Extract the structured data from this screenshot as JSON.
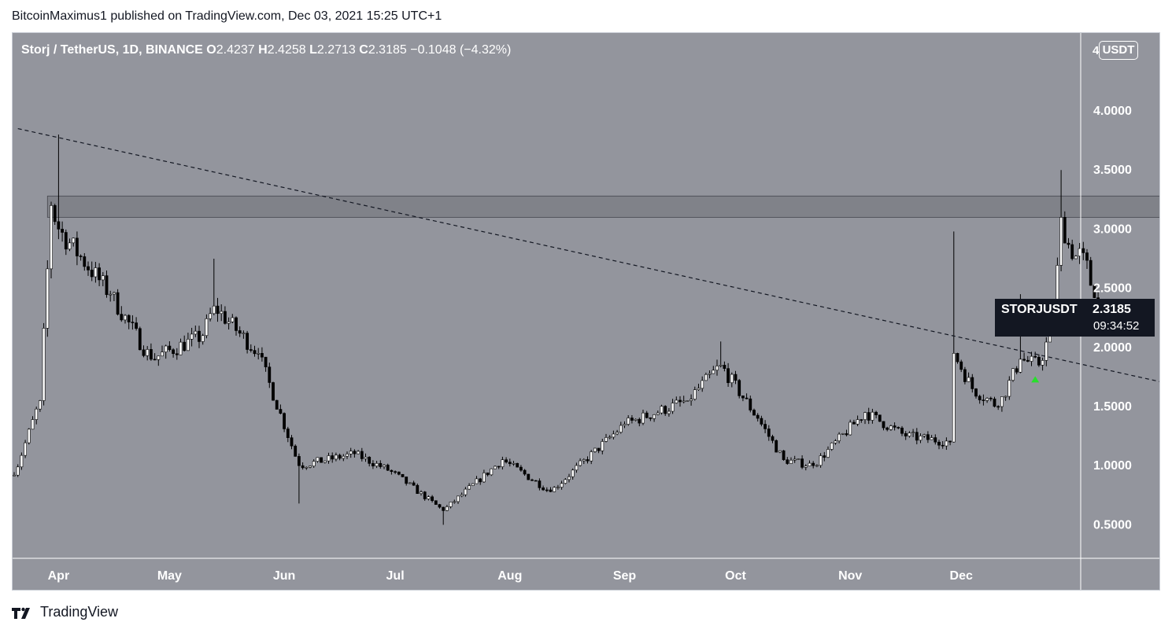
{
  "header": {
    "attribution": "BitcoinMaximus1 published on TradingView.com, Dec 03, 2021 15:25 UTC+1"
  },
  "legend": {
    "symbol": "Storj / TetherUS, 1D, BINANCE",
    "open_label": "O",
    "open": "2.4237",
    "high_label": "H",
    "high": "2.4258",
    "low_label": "L",
    "low": "2.2713",
    "close_label": "C",
    "close": "2.3185",
    "change": "−0.1048 (−4.32%)"
  },
  "toolbar": {
    "currency_button": "USDT",
    "axis_top_label": "4"
  },
  "price_tag": {
    "symbol": "STORJUSDT",
    "price": "2.3185",
    "countdown": "09:34:52"
  },
  "footer": {
    "brand": "TradingView"
  },
  "colors": {
    "background": "#93959d",
    "candle_up": "#ffffff",
    "candle_down": "#000000",
    "resistance_zone": "#7d7f86",
    "marker": "#26e02a",
    "axis_text": "#ffffff"
  },
  "chart_data": {
    "type": "candlestick",
    "x_axis_labels": [
      "Apr",
      "May",
      "Jun",
      "Jul",
      "Aug",
      "Sep",
      "Oct",
      "Nov",
      "Dec"
    ],
    "y_axis_labels": [
      "4.0000",
      "3.5000",
      "3.0000",
      "2.5000",
      "2.0000",
      "1.5000",
      "1.0000",
      "0.5000"
    ],
    "ylim": [
      0.25,
      4.35
    ],
    "grid": false,
    "key_points": [
      {
        "date": "2021-03-20",
        "close": 0.92
      },
      {
        "date": "2021-03-27",
        "close": 1.55
      },
      {
        "date": "2021-03-30",
        "close": 3.2
      },
      {
        "date": "2021-04-01",
        "close": 3.0,
        "high": 3.8
      },
      {
        "date": "2021-04-15",
        "close": 2.45
      },
      {
        "date": "2021-04-26",
        "close": 1.9
      },
      {
        "date": "2021-05-10",
        "close": 2.1
      },
      {
        "date": "2021-05-13",
        "close": 2.35,
        "high": 2.75
      },
      {
        "date": "2021-05-25",
        "close": 1.95
      },
      {
        "date": "2021-06-05",
        "close": 1.0,
        "low": 0.68
      },
      {
        "date": "2021-06-20",
        "close": 1.1
      },
      {
        "date": "2021-06-30",
        "close": 0.95
      },
      {
        "date": "2021-07-14",
        "close": 0.62,
        "low": 0.5
      },
      {
        "date": "2021-07-30",
        "close": 1.05
      },
      {
        "date": "2021-08-12",
        "close": 0.78
      },
      {
        "date": "2021-09-01",
        "close": 1.35
      },
      {
        "date": "2021-09-18",
        "close": 1.55
      },
      {
        "date": "2021-09-27",
        "close": 1.85,
        "high": 2.05
      },
      {
        "date": "2021-10-07",
        "close": 1.4
      },
      {
        "date": "2021-10-14",
        "close": 1.05
      },
      {
        "date": "2021-10-22",
        "close": 1.0
      },
      {
        "date": "2021-11-05",
        "close": 1.45
      },
      {
        "date": "2021-11-16",
        "close": 1.25
      },
      {
        "date": "2021-11-28",
        "close": 1.2
      },
      {
        "date": "2021-11-29",
        "close": 1.95,
        "high": 2.98
      },
      {
        "date": "2021-12-04",
        "close": 1.65
      },
      {
        "date": "2021-12-11",
        "close": 1.5
      },
      {
        "date": "2021-12-17",
        "close": 1.9,
        "high": 2.45
      },
      {
        "date": "2021-12-22",
        "close": 1.85
      },
      {
        "date": "2021-12-26",
        "close": 2.2
      },
      {
        "date": "2021-12-28",
        "close": 3.1,
        "high": 3.5
      },
      {
        "date": "2021-12-31",
        "close": 2.75
      },
      {
        "date": "2022-01-03",
        "close": 2.8
      },
      {
        "date": "2022-01-06",
        "close": 2.42
      },
      {
        "date": "2022-01-08",
        "close": 2.3185
      }
    ],
    "resistance_zone": {
      "low": 3.1,
      "high": 3.28
    },
    "trendline": {
      "start": {
        "date": "2021-03-21",
        "value": 3.85
      },
      "end": {
        "date": "2022-01-31",
        "value": 1.66
      }
    },
    "marker": {
      "date": "2021-12-21",
      "value": 1.73,
      "shape": "triangle-up"
    }
  }
}
